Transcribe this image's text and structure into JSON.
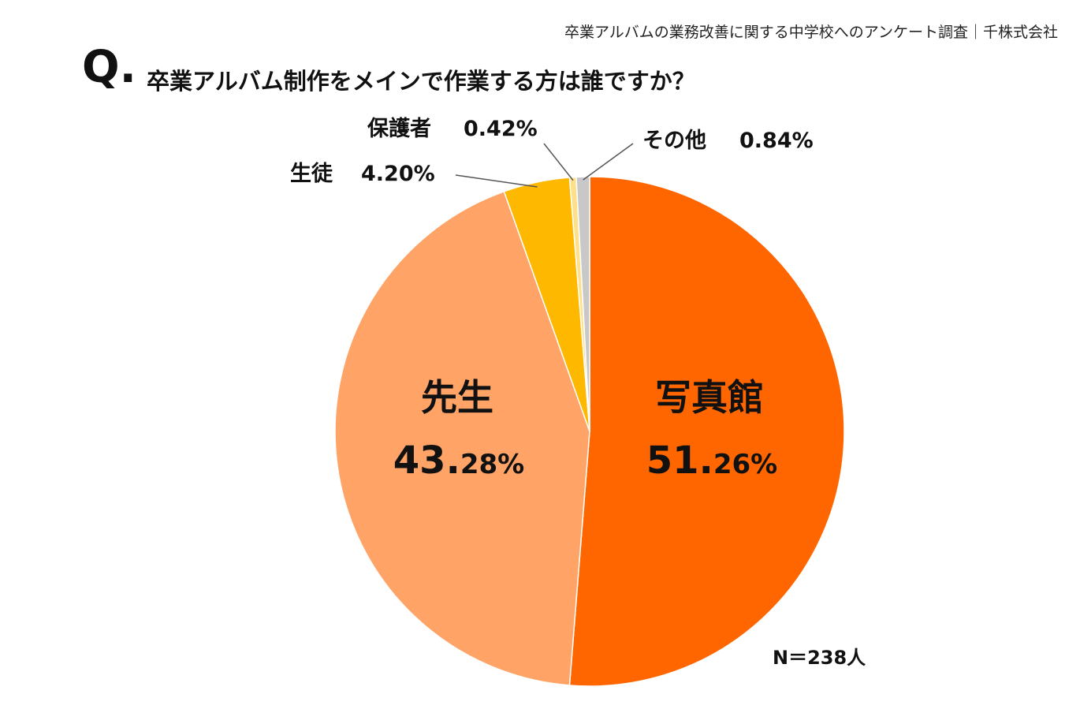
{
  "source": "卒業アルバムの業務改善に関する中学校へのアンケート調査｜千株式会社",
  "question_mark": "Q.",
  "chart_data": {
    "type": "pie",
    "title": "卒業アルバム制作をメインで作業する方は誰ですか？",
    "categories": [
      "写真館",
      "先生",
      "生徒",
      "保護者",
      "その他"
    ],
    "values": [
      51.26,
      43.28,
      4.2,
      0.42,
      0.84
    ],
    "labels": [
      "51.26%",
      "43.28%",
      "4.20%",
      "0.42%",
      "0.84%"
    ],
    "colors": [
      "#FF6600",
      "#FFA366",
      "#FFB800",
      "#FFE08A",
      "#C8C8C8"
    ],
    "direction": "clockwise",
    "start": "top",
    "sample_size": "N＝238人"
  }
}
